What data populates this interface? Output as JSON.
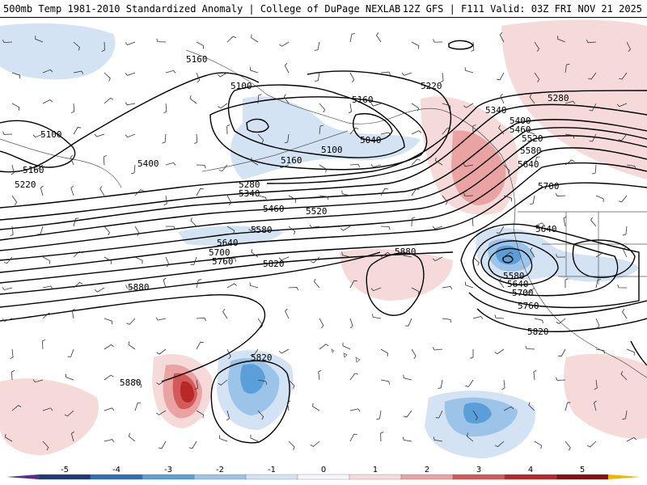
{
  "header": {
    "title": "500mb Temp 1981-2010 Standardized Anomaly | College of DuPage NEXLAB",
    "run": "12Z GFS | F111 Valid: 03Z FRI NOV 21 2025"
  },
  "colorbar": {
    "ticks": [
      "-5",
      "-4",
      "-3",
      "-2",
      "-1",
      "0",
      "1",
      "2",
      "3",
      "4",
      "5"
    ],
    "colors": [
      "#5b2a8c",
      "#1f3a7a",
      "#2f6fb5",
      "#5a9fd8",
      "#9cc4e8",
      "#d3e3f3",
      "#f4f7fb",
      "#f6dada",
      "#eaa3a3",
      "#d45a5a",
      "#b82828",
      "#8a1010",
      "#f0b400"
    ]
  },
  "contours": {
    "labels": [
      "5160",
      "5100",
      "5100",
      "5160",
      "5220",
      "5160",
      "5040",
      "5100",
      "5160",
      "5220",
      "5280",
      "5340",
      "5400",
      "5460",
      "5520",
      "5580",
      "5640",
      "5700",
      "5280",
      "5340",
      "5400",
      "5460",
      "5520",
      "5580",
      "5640",
      "5700",
      "5760",
      "5820",
      "5880",
      "5880",
      "5640",
      "5580",
      "5640",
      "5700",
      "5760",
      "5820",
      "5880",
      "5820"
    ]
  },
  "anomaly_colors": {
    "warm_light": "#f6dada",
    "warm_mid": "#eaa3a3",
    "warm_strong": "#d45a5a",
    "warm_max": "#b82828",
    "cool_light": "#d3e3f3",
    "cool_mid": "#9cc4e8",
    "cool_strong": "#5a9fd8",
    "cool_max": "#2f6fb5"
  }
}
